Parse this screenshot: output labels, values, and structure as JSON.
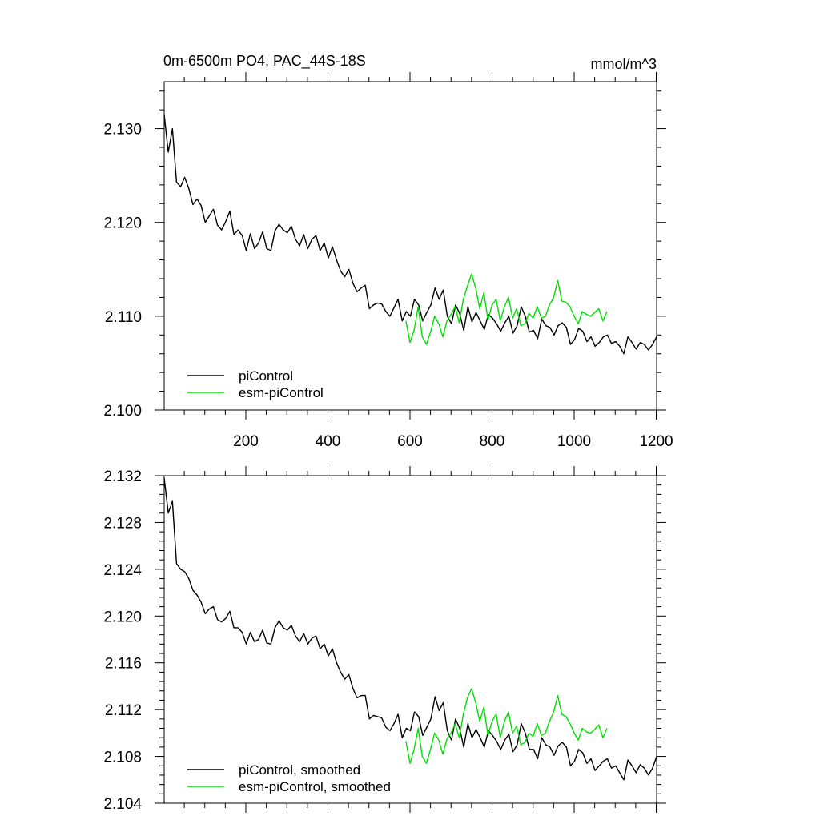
{
  "chart_data": [
    {
      "type": "line",
      "title": "0m-6500m PO4, PAC_44S-18S",
      "units": "mmol/m^3",
      "xlim": [
        1,
        1201
      ],
      "ylim": [
        2.1,
        2.135
      ],
      "x_ticks": [
        200,
        400,
        600,
        800,
        1000,
        1200
      ],
      "y_ticks": [
        2.1,
        2.11,
        2.12,
        2.13
      ],
      "y_tick_labels": [
        "2.100",
        "2.110",
        "2.120",
        "2.130"
      ],
      "grid": false,
      "legend_position": "bottom-left",
      "series": [
        {
          "name": "piControl",
          "color": "#000000",
          "x_start": 1,
          "x_step": 10,
          "values": [
            2.1315,
            2.1275,
            2.13,
            2.1243,
            2.1238,
            2.1248,
            2.1236,
            2.1219,
            2.1225,
            2.1218,
            2.12,
            2.1207,
            2.1214,
            2.1197,
            2.1192,
            2.1201,
            2.1212,
            2.1187,
            2.1192,
            2.1186,
            2.117,
            2.1188,
            2.1172,
            2.1178,
            2.119,
            2.1172,
            2.117,
            2.1191,
            2.1198,
            2.1192,
            2.1189,
            2.1196,
            2.1182,
            2.1175,
            2.1187,
            2.1172,
            2.1182,
            2.1186,
            2.117,
            2.1178,
            2.1162,
            2.1174,
            2.116,
            2.1148,
            2.1142,
            2.115,
            2.1135,
            2.1126,
            2.113,
            2.1133,
            2.1108,
            2.1112,
            2.1114,
            2.1113,
            2.1105,
            2.11,
            2.1109,
            2.1118,
            2.1095,
            2.1105,
            2.11,
            2.1118,
            2.1112,
            2.1095,
            2.1104,
            2.1112,
            2.113,
            2.1118,
            2.1128,
            2.11,
            2.1092,
            2.1112,
            2.1103,
            2.1085,
            2.111,
            2.1094,
            2.1104,
            2.1095,
            2.1086,
            2.1102,
            2.1098,
            2.1092,
            2.1084,
            2.1093,
            2.11,
            2.1082,
            2.109,
            2.111,
            2.11,
            2.1083,
            2.1085,
            2.1076,
            2.1097,
            2.109,
            2.1088,
            2.108,
            2.109,
            2.1093,
            2.1088,
            2.107,
            2.1075,
            2.1087,
            2.1084,
            2.1073,
            2.1078,
            2.1068,
            2.1072,
            2.1078,
            2.108,
            2.1071,
            2.1073,
            2.1068,
            2.106,
            2.1078,
            2.1072,
            2.1065,
            2.1072,
            2.107,
            2.1064,
            2.107,
            2.1078
          ]
        },
        {
          "name": "esm-piControl",
          "color": "#00e000",
          "x_start": 590,
          "x_step": 10,
          "values": [
            2.1095,
            2.1072,
            2.1085,
            2.111,
            2.1078,
            2.107,
            2.1083,
            2.11,
            2.1092,
            2.1078,
            2.1095,
            2.1102,
            2.111,
            2.1093,
            2.1118,
            2.1132,
            2.1145,
            2.113,
            2.1108,
            2.1125,
            2.1096,
            2.1112,
            2.1118,
            2.1095,
            2.111,
            2.112,
            2.1098,
            2.1108,
            2.109,
            2.1092,
            2.1103,
            2.1098,
            2.111,
            2.1098,
            2.11,
            2.1112,
            2.112,
            2.1138,
            2.1116,
            2.1115,
            2.111,
            2.11,
            2.1092,
            2.1105,
            2.1102,
            2.11,
            2.1104,
            2.1108,
            2.1095,
            2.1105
          ]
        }
      ],
      "legend": [
        "piControl",
        "esm-piControl"
      ]
    },
    {
      "type": "line",
      "xlim": [
        1,
        1201
      ],
      "ylim": [
        2.104,
        2.132
      ],
      "x_ticks": [
        200,
        400,
        600,
        800,
        1000,
        1200
      ],
      "y_ticks": [
        2.104,
        2.108,
        2.112,
        2.116,
        2.12,
        2.124,
        2.128,
        2.132
      ],
      "y_tick_labels": [
        "2.104",
        "2.108",
        "2.112",
        "2.116",
        "2.120",
        "2.124",
        "2.128",
        "2.132"
      ],
      "grid": false,
      "legend_position": "bottom-left",
      "series": [
        {
          "name": "piControl, smoothed",
          "color": "#000000",
          "x_start": 1,
          "x_step": 10,
          "values": [
            2.1318,
            2.1288,
            2.1298,
            2.1245,
            2.124,
            2.1238,
            2.1232,
            2.1222,
            2.1218,
            2.1212,
            2.1202,
            2.1206,
            2.1208,
            2.1197,
            2.1195,
            2.1198,
            2.1204,
            2.119,
            2.119,
            2.1186,
            2.1176,
            2.1186,
            2.1178,
            2.118,
            2.1188,
            2.1177,
            2.1176,
            2.119,
            2.1196,
            2.119,
            2.1188,
            2.1192,
            2.1183,
            2.1178,
            2.1185,
            2.1176,
            2.1181,
            2.1183,
            2.1172,
            2.1176,
            2.1166,
            2.1172,
            2.116,
            2.1152,
            2.1146,
            2.115,
            2.1138,
            2.113,
            2.1132,
            2.1132,
            2.1112,
            2.1115,
            2.1114,
            2.1113,
            2.1105,
            2.1102,
            2.1108,
            2.1116,
            2.1096,
            2.1104,
            2.1102,
            2.1118,
            2.1114,
            2.1098,
            2.1105,
            2.1112,
            2.1131,
            2.1119,
            2.1126,
            2.1102,
            2.1094,
            2.1112,
            2.1104,
            2.1088,
            2.1108,
            2.1096,
            2.1103,
            2.1096,
            2.1088,
            2.1102,
            2.1098,
            2.1093,
            2.1086,
            2.1094,
            2.1099,
            2.1084,
            2.109,
            2.1108,
            2.11,
            2.1086,
            2.1086,
            2.1078,
            2.1096,
            2.109,
            2.1088,
            2.1081,
            2.1089,
            2.1092,
            2.1088,
            2.1072,
            2.1076,
            2.1086,
            2.1083,
            2.1074,
            2.1078,
            2.1068,
            2.1072,
            2.1076,
            2.1078,
            2.107,
            2.1072,
            2.1066,
            2.106,
            2.1077,
            2.1072,
            2.1066,
            2.1073,
            2.107,
            2.1064,
            2.107,
            2.108
          ]
        },
        {
          "name": "esm-piControl, smoothed",
          "color": "#00e000",
          "x_start": 590,
          "x_step": 10,
          "values": [
            2.1093,
            2.1074,
            2.1086,
            2.1104,
            2.108,
            2.1074,
            2.1086,
            2.11,
            2.1094,
            2.1082,
            2.1095,
            2.11,
            2.1108,
            2.1096,
            2.1116,
            2.113,
            2.1138,
            2.1126,
            2.111,
            2.1122,
            2.1098,
            2.111,
            2.1116,
            2.1096,
            2.111,
            2.1118,
            2.11,
            2.1106,
            2.109,
            2.1092,
            2.11,
            2.1097,
            2.1108,
            2.1098,
            2.11,
            2.111,
            2.1118,
            2.1132,
            2.1116,
            2.1114,
            2.1108,
            2.11,
            2.1094,
            2.1104,
            2.1101,
            2.11,
            2.1103,
            2.1107,
            2.1096,
            2.1104
          ]
        }
      ],
      "legend": [
        "piControl, smoothed",
        "esm-piControl, smoothed"
      ]
    }
  ]
}
